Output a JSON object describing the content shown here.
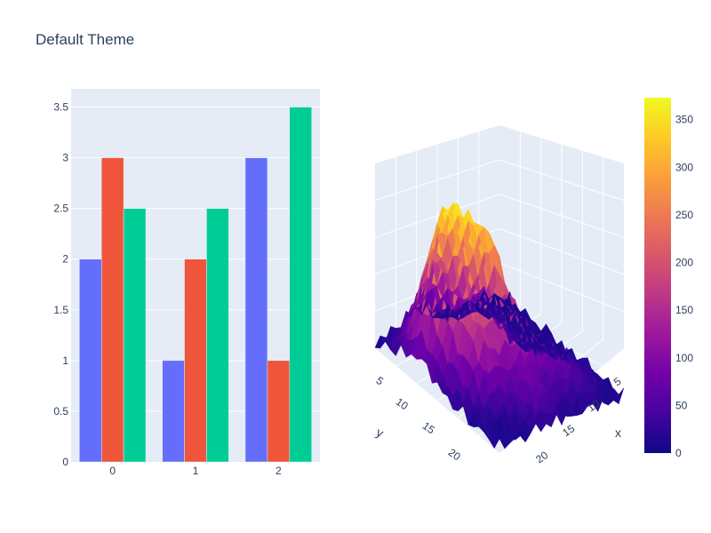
{
  "title": "Default Theme",
  "chart_data": [
    {
      "type": "bar",
      "categories": [
        "0",
        "1",
        "2"
      ],
      "series": [
        {
          "color": "#636efa",
          "values": [
            2,
            1,
            3
          ]
        },
        {
          "color": "#ef553b",
          "values": [
            3,
            2,
            1
          ]
        },
        {
          "color": "#00cc96",
          "values": [
            2.5,
            2.5,
            3.5
          ]
        }
      ],
      "ylim": [
        0,
        3.68
      ],
      "yticks": [
        0,
        0.5,
        1,
        1.5,
        2,
        2.5,
        3,
        3.5
      ],
      "ytick_labels": [
        "0",
        "0.5",
        "1",
        "1.5",
        "2",
        "2.5",
        "3",
        "3.5"
      ],
      "grid": true,
      "plot_bg": "#e5ecf6"
    },
    {
      "type": "surface",
      "xlabel": "x",
      "ylabel": "y",
      "xticks": [
        "5",
        "10",
        "15",
        "20"
      ],
      "yticks": [
        "5",
        "10",
        "15",
        "20"
      ],
      "colorscale": "plasma",
      "colorbar": {
        "min": 0,
        "max": 373,
        "ticks": [
          0,
          50,
          100,
          150,
          200,
          250,
          300,
          350
        ],
        "tick_labels": [
          "0",
          "50",
          "100",
          "150",
          "200",
          "250",
          "300",
          "350"
        ]
      },
      "peak_value": 373
    }
  ]
}
